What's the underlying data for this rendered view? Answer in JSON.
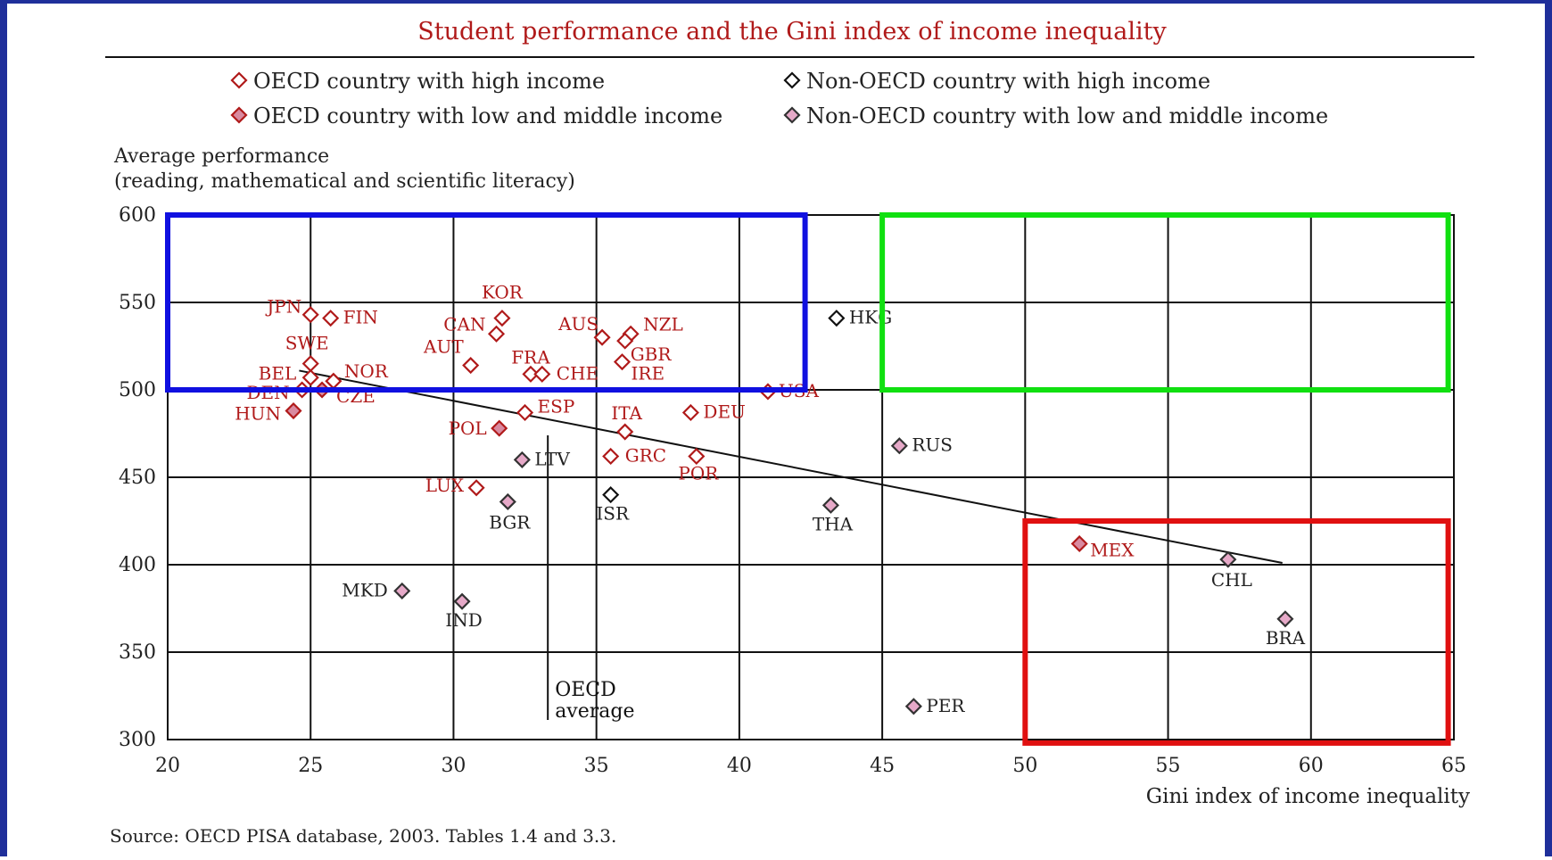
{
  "chart_data": {
    "type": "scatter",
    "title": "Student performance and the Gini index of income inequality",
    "ylabel_line1": "Average performance",
    "ylabel_line2": "(reading, mathematical and scientific literacy)",
    "xlabel": "Gini index of income inequality",
    "xlim": [
      20,
      65
    ],
    "ylim": [
      300,
      600
    ],
    "x_ticks": [
      "20",
      "25",
      "30",
      "35",
      "40",
      "45",
      "50",
      "55",
      "60",
      "65"
    ],
    "y_ticks": [
      "300",
      "350",
      "400",
      "450",
      "500",
      "550",
      "600"
    ],
    "grid": true,
    "legend": [
      {
        "key": "oecd_high",
        "label": "OECD country with high income"
      },
      {
        "key": "nonoecd_high",
        "label": "Non-OECD country with high income"
      },
      {
        "key": "oecd_lowmid",
        "label": "OECD country with low and middle income"
      },
      {
        "key": "nonoecd_lowmid",
        "label": "Non-OECD country with low and middle income"
      }
    ],
    "series_styles": {
      "oecd_high": {
        "stroke": "#b01a1a",
        "fill": "#ffffff",
        "label_color": "#b01a1a"
      },
      "oecd_lowmid": {
        "stroke": "#b01a1a",
        "fill": "#d98aa0",
        "label_color": "#b01a1a"
      },
      "nonoecd_high": {
        "stroke": "#111111",
        "fill": "#ffffff",
        "label_color": "#222222"
      },
      "nonoecd_lowmid": {
        "stroke": "#333333",
        "fill": "#e6a9c8",
        "label_color": "#222222"
      }
    },
    "points": [
      {
        "label": "JPN",
        "group": "oecd_high",
        "x": 25.0,
        "y": 543
      },
      {
        "label": "FIN",
        "group": "oecd_high",
        "x": 25.7,
        "y": 541
      },
      {
        "label": "KOR",
        "group": "oecd_high",
        "x": 31.7,
        "y": 541
      },
      {
        "label": "CAN",
        "group": "oecd_high",
        "x": 31.5,
        "y": 532
      },
      {
        "label": "AUS",
        "group": "oecd_high",
        "x": 35.2,
        "y": 530
      },
      {
        "label": "NZL",
        "group": "oecd_high",
        "x": 36.2,
        "y": 532
      },
      {
        "label": "GBR",
        "group": "oecd_high",
        "x": 36.0,
        "y": 528
      },
      {
        "label": "SWE",
        "group": "oecd_high",
        "x": 25.0,
        "y": 515
      },
      {
        "label": "AUT",
        "group": "oecd_high",
        "x": 30.6,
        "y": 514
      },
      {
        "label": "FRA",
        "group": "oecd_high",
        "x": 32.7,
        "y": 509
      },
      {
        "label": "CHE",
        "group": "oecd_high",
        "x": 33.1,
        "y": 509
      },
      {
        "label": "IRE",
        "group": "oecd_high",
        "x": 35.9,
        "y": 516
      },
      {
        "label": "BEL",
        "group": "oecd_high",
        "x": 25.0,
        "y": 507
      },
      {
        "label": "NOR",
        "group": "oecd_high",
        "x": 25.8,
        "y": 505
      },
      {
        "label": "DEN",
        "group": "oecd_high",
        "x": 24.7,
        "y": 500
      },
      {
        "label": "USA",
        "group": "oecd_high",
        "x": 41.0,
        "y": 499
      },
      {
        "label": "ESP",
        "group": "oecd_high",
        "x": 32.5,
        "y": 487
      },
      {
        "label": "DEU",
        "group": "oecd_high",
        "x": 38.3,
        "y": 487
      },
      {
        "label": "ITA",
        "group": "oecd_high",
        "x": 36.0,
        "y": 476
      },
      {
        "label": "GRC",
        "group": "oecd_high",
        "x": 35.5,
        "y": 462
      },
      {
        "label": "POR",
        "group": "oecd_high",
        "x": 38.5,
        "y": 462
      },
      {
        "label": "LUX",
        "group": "oecd_high",
        "x": 30.8,
        "y": 444
      },
      {
        "label": "HUN",
        "group": "oecd_lowmid",
        "x": 24.4,
        "y": 488
      },
      {
        "label": "CZE",
        "group": "oecd_lowmid",
        "x": 25.4,
        "y": 500
      },
      {
        "label": "POL",
        "group": "oecd_lowmid",
        "x": 31.6,
        "y": 478
      },
      {
        "label": "MEX",
        "group": "oecd_lowmid",
        "x": 51.9,
        "y": 412
      },
      {
        "label": "HKG",
        "group": "nonoecd_high",
        "x": 43.4,
        "y": 541
      },
      {
        "label": "ISR",
        "group": "nonoecd_high",
        "x": 35.5,
        "y": 440
      },
      {
        "label": "LTV",
        "group": "nonoecd_lowmid",
        "x": 32.4,
        "y": 460
      },
      {
        "label": "RUS",
        "group": "nonoecd_lowmid",
        "x": 45.6,
        "y": 468
      },
      {
        "label": "BGR",
        "group": "nonoecd_lowmid",
        "x": 31.9,
        "y": 436
      },
      {
        "label": "THA",
        "group": "nonoecd_lowmid",
        "x": 43.2,
        "y": 434
      },
      {
        "label": "CHL",
        "group": "nonoecd_lowmid",
        "x": 57.1,
        "y": 403
      },
      {
        "label": "BRA",
        "group": "nonoecd_lowmid",
        "x": 59.1,
        "y": 369
      },
      {
        "label": "MKD",
        "group": "nonoecd_lowmid",
        "x": 28.2,
        "y": 385
      },
      {
        "label": "IND",
        "group": "nonoecd_lowmid",
        "x": 30.3,
        "y": 379
      },
      {
        "label": "PER",
        "group": "nonoecd_lowmid",
        "x": 46.1,
        "y": 319
      }
    ],
    "trend_line": {
      "x1": 24.6,
      "y1": 511,
      "x2": 59.0,
      "y2": 401
    },
    "oecd_average": {
      "label_line1": "OECD",
      "label_line2": "average",
      "x": 33.3,
      "y_top": 474
    },
    "annotation_boxes": [
      {
        "color": "#1010e0",
        "x1": 20.0,
        "y1": 500,
        "x2": 42.3,
        "y2": 600
      },
      {
        "color": "#10e010",
        "x1": 45.0,
        "y1": 500,
        "x2": 64.8,
        "y2": 600
      },
      {
        "color": "#e01010",
        "x1": 50.0,
        "y1": 298,
        "x2": 64.8,
        "y2": 425
      }
    ],
    "source": "Source: OECD PISA database, 2003. Tables 1.4 and 3.3."
  }
}
